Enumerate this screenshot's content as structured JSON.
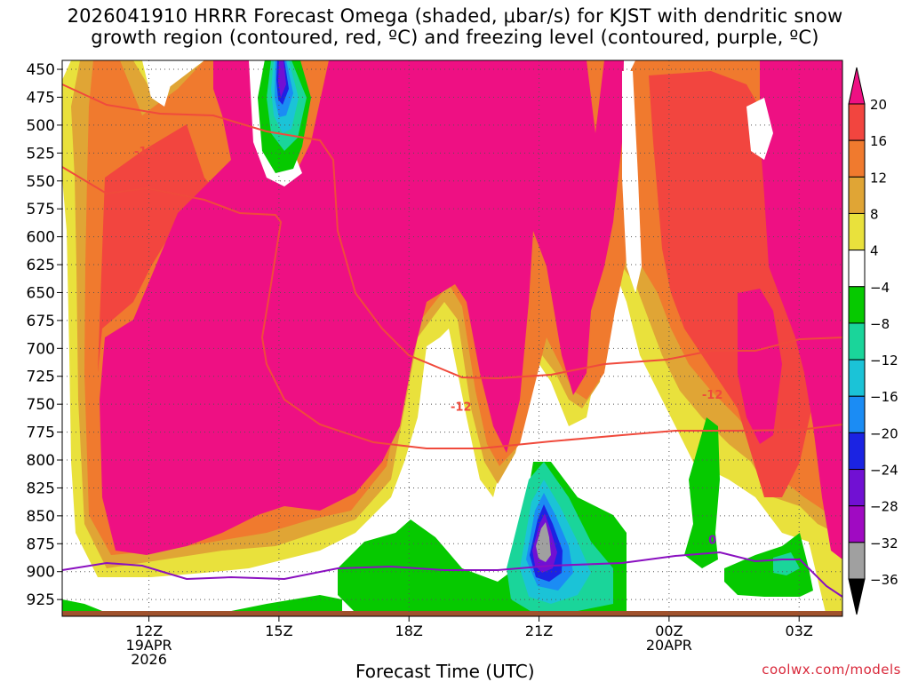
{
  "title": {
    "line1": "2026041910 HRRR Forecast Omega (shaded, μbar/s) for KJST with dendritic snow",
    "line2": "growth region (contoured, red, ºC) and freezing level (contoured, purple, ºC)"
  },
  "credit": "coolwx.com/models",
  "chart_data": {
    "type": "heatmap",
    "xlabel": "Forecast Time (UTC)",
    "x_ticks": [
      {
        "label": "12Z",
        "sub": "19APR",
        "sub2": "2026",
        "hour": 12
      },
      {
        "label": "15Z",
        "hour": 15
      },
      {
        "label": "18Z",
        "hour": 18
      },
      {
        "label": "21Z",
        "hour": 21
      },
      {
        "label": "00Z",
        "sub": "20APR",
        "hour": 24
      },
      {
        "label": "03Z",
        "hour": 27
      }
    ],
    "xlim": [
      10,
      28
    ],
    "ylim": [
      940,
      442
    ],
    "y_ticks": [
      450,
      475,
      500,
      525,
      550,
      575,
      600,
      625,
      650,
      675,
      700,
      725,
      750,
      775,
      800,
      825,
      850,
      875,
      900,
      925
    ],
    "colorbar": {
      "labels": [
        "20",
        "16",
        "12",
        "8",
        "4",
        "−4",
        "−8",
        "−12",
        "−16",
        "−20",
        "−24",
        "−28",
        "−32",
        "−36"
      ],
      "colors": [
        "#ee1083",
        "#f2453f",
        "#f07a2e",
        "#e0a535",
        "#e9e13c",
        "#ffffff",
        "#06c900",
        "#1ad59a",
        "#1bc3d7",
        "#1b8cf4",
        "#1b23e3",
        "#7110d3",
        "#a00ac2",
        "#a0a0a0",
        "#000000"
      ]
    },
    "contours": [
      {
        "name": "-12",
        "color": "#f04a3c",
        "label_pos": [
          {
            "hour": 11.9,
            "p": 523
          },
          {
            "hour": 19.2,
            "p": 752
          },
          {
            "hour": 25.0,
            "p": 741
          }
        ]
      },
      {
        "name": "0",
        "color": "#8a10c0",
        "label_pos": [
          {
            "hour": 25.0,
            "p": 871
          }
        ]
      }
    ]
  }
}
